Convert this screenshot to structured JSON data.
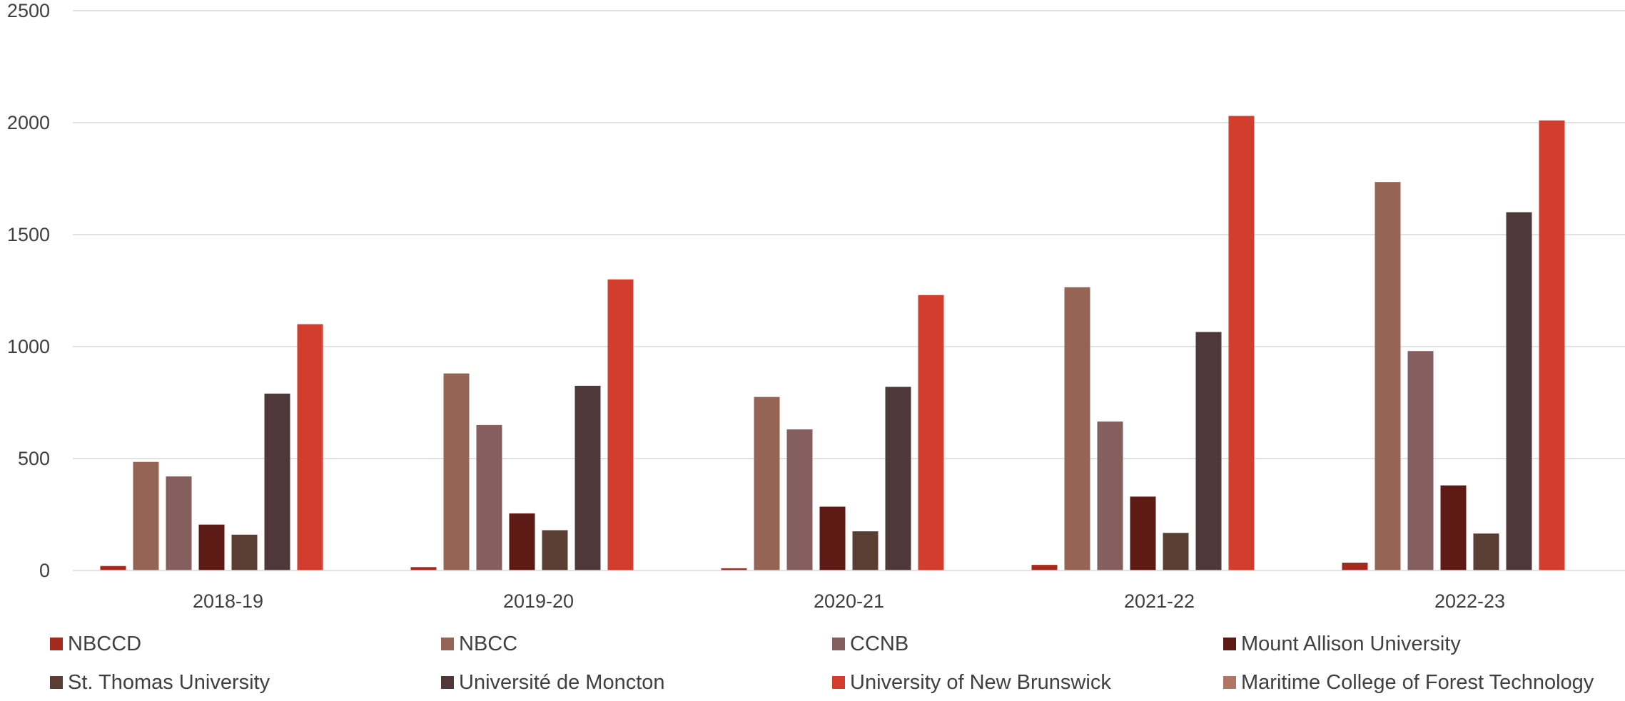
{
  "chart_data": {
    "type": "bar",
    "title": "",
    "xlabel": "",
    "ylabel": "",
    "ylim": [
      0,
      2500
    ],
    "yticks": [
      0,
      500,
      1000,
      1500,
      2000,
      2500
    ],
    "grid": true,
    "legend_position": "bottom",
    "categories": [
      "2018-19",
      "2019-20",
      "2020-21",
      "2021-22",
      "2022-23"
    ],
    "series": [
      {
        "name": "NBCCD",
        "color": "#a52a1e",
        "values": [
          20,
          15,
          10,
          25,
          35
        ]
      },
      {
        "name": "NBCC",
        "color": "#956454",
        "values": [
          485,
          880,
          775,
          1265,
          1735
        ]
      },
      {
        "name": "CCNB",
        "color": "#855e5e",
        "values": [
          420,
          650,
          630,
          665,
          980
        ]
      },
      {
        "name": "Mount Allison University",
        "color": "#5e1a15",
        "values": [
          205,
          255,
          285,
          330,
          380
        ]
      },
      {
        "name": "St. Thomas University",
        "color": "#5b3e33",
        "values": [
          160,
          180,
          175,
          168,
          165
        ]
      },
      {
        "name": "Université de Moncton",
        "color": "#4e3839",
        "values": [
          790,
          825,
          820,
          1065,
          1600
        ]
      },
      {
        "name": "University of New Brunswick",
        "color": "#d23d2d",
        "values": [
          1100,
          1300,
          1230,
          2030,
          2010
        ]
      },
      {
        "name": "Maritime College of Forest Technology",
        "color": "#b07565",
        "values": [
          0,
          0,
          0,
          0,
          0
        ]
      }
    ]
  }
}
